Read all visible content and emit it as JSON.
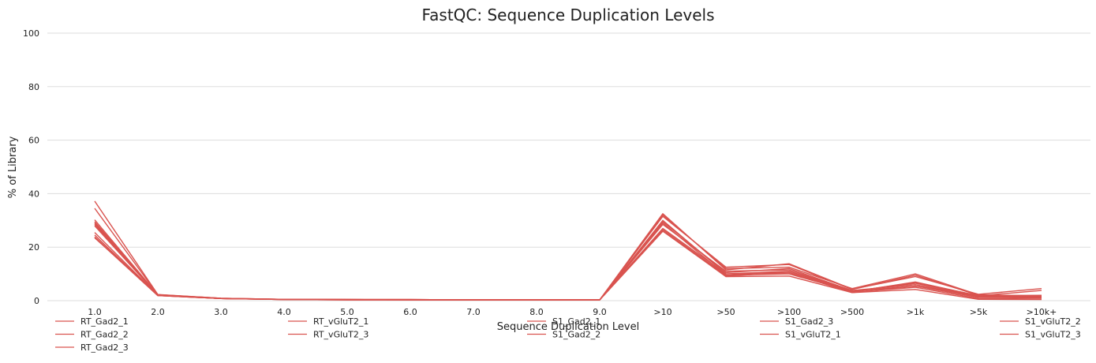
{
  "chart_data": {
    "type": "line",
    "title": "FastQC: Sequence Duplication Levels",
    "xlabel": "Sequence Duplication Level",
    "ylabel": "% of Library",
    "ylim": [
      0,
      100
    ],
    "yticks": [
      0,
      20,
      40,
      60,
      80,
      100
    ],
    "categories": [
      "1.0",
      "2.0",
      "3.0",
      "4.0",
      "5.0",
      "6.0",
      "7.0",
      "8.0",
      "9.0",
      ">10",
      ">50",
      ">100",
      ">500",
      ">1k",
      ">5k",
      ">10k+"
    ],
    "grid": "horizontal",
    "legend_position": "bottom",
    "line_color": "#d9534f",
    "series": [
      {
        "name": "RT_Gad2_1",
        "values": [
          37.2,
          2.3,
          0.9,
          0.5,
          0.4,
          0.4,
          0.3,
          0.3,
          0.3,
          26.0,
          9.0,
          9.2,
          3.0,
          4.2,
          0.5,
          0.4
        ]
      },
      {
        "name": "RT_Gad2_2",
        "values": [
          34.5,
          2.2,
          0.9,
          0.5,
          0.4,
          0.4,
          0.3,
          0.3,
          0.3,
          27.0,
          10.0,
          10.5,
          3.2,
          5.0,
          0.8,
          0.6
        ]
      },
      {
        "name": "RT_Gad2_3",
        "values": [
          30.2,
          2.2,
          0.9,
          0.5,
          0.4,
          0.4,
          0.3,
          0.3,
          0.3,
          28.5,
          11.0,
          11.5,
          3.6,
          5.5,
          1.2,
          1.0
        ]
      },
      {
        "name": "RT_vGluT2_1",
        "values": [
          29.0,
          2.1,
          0.8,
          0.5,
          0.4,
          0.4,
          0.3,
          0.3,
          0.3,
          29.5,
          10.5,
          12.0,
          3.8,
          6.0,
          1.5,
          1.2
        ]
      },
      {
        "name": "RT_vGluT2_3",
        "values": [
          28.5,
          2.0,
          0.8,
          0.4,
          0.4,
          0.3,
          0.3,
          0.3,
          0.3,
          30.0,
          10.0,
          11.0,
          3.5,
          6.5,
          1.6,
          1.3
        ]
      },
      {
        "name": "S1_Gad2_1",
        "values": [
          25.5,
          2.0,
          0.8,
          0.4,
          0.4,
          0.3,
          0.3,
          0.3,
          0.3,
          31.5,
          12.5,
          13.5,
          4.2,
          9.5,
          2.0,
          1.5
        ]
      },
      {
        "name": "S1_Gad2_2",
        "values": [
          24.5,
          1.9,
          0.8,
          0.4,
          0.3,
          0.3,
          0.3,
          0.3,
          0.3,
          32.0,
          12.0,
          12.5,
          4.5,
          10.0,
          2.2,
          1.7
        ]
      },
      {
        "name": "S1_Gad2_3",
        "values": [
          23.5,
          1.9,
          0.8,
          0.4,
          0.3,
          0.3,
          0.3,
          0.3,
          0.3,
          32.5,
          11.5,
          13.8,
          4.3,
          9.0,
          2.4,
          4.5
        ]
      },
      {
        "name": "S1_vGluT2_1",
        "values": [
          29.5,
          2.1,
          0.8,
          0.5,
          0.4,
          0.3,
          0.3,
          0.3,
          0.3,
          29.0,
          9.5,
          11.0,
          3.3,
          7.0,
          1.8,
          3.8
        ]
      },
      {
        "name": "S1_vGluT2_2",
        "values": [
          28.0,
          2.0,
          0.8,
          0.5,
          0.4,
          0.3,
          0.3,
          0.3,
          0.3,
          26.5,
          9.5,
          10.0,
          3.4,
          6.8,
          1.9,
          2.0
        ]
      },
      {
        "name": "S1_vGluT2_3",
        "values": [
          23.8,
          1.9,
          0.8,
          0.4,
          0.3,
          0.3,
          0.3,
          0.3,
          0.3,
          26.0,
          9.2,
          10.5,
          3.0,
          5.5,
          1.7,
          1.8
        ]
      }
    ]
  }
}
